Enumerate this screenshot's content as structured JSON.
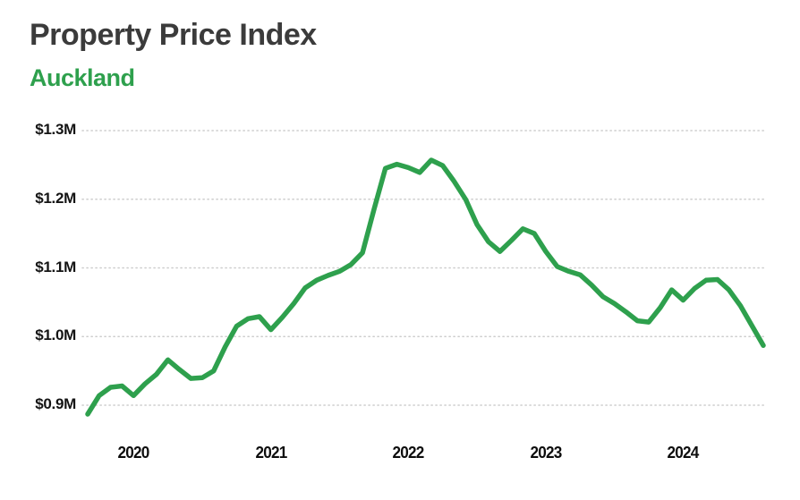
{
  "header": {
    "title": "Property Price Index",
    "subtitle": "Auckland"
  },
  "colors": {
    "line_green": "#2ea04d",
    "subtitle_green": "#2ea04d",
    "title_gray": "#3b3b3b",
    "gridline_gray": "#cdcdcd",
    "axis_text": "#141414"
  },
  "chart_data": {
    "type": "line",
    "title": "Property Price Index",
    "subtitle": "Auckland",
    "series_name": "Auckland property price index",
    "unit": "NZD millions",
    "grid": "horizontal-dotted",
    "legend": "none",
    "line_color": "#2ea04d",
    "ylim": [
      0.85,
      1.33
    ],
    "y_ticks": {
      "values": [
        1.3,
        1.2,
        1.1,
        1.0,
        0.9
      ],
      "labels": [
        "$1.3M",
        "$1.2M",
        "$1.1M",
        "$1.0M",
        "$0.9M"
      ]
    },
    "x_ticks": [
      "2020",
      "2021",
      "2022",
      "2023",
      "2024"
    ],
    "months": [
      "2019-09",
      "2019-10",
      "2019-11",
      "2019-12",
      "2020-01",
      "2020-02",
      "2020-03",
      "2020-04",
      "2020-05",
      "2020-06",
      "2020-07",
      "2020-08",
      "2020-09",
      "2020-10",
      "2020-11",
      "2020-12",
      "2021-01",
      "2021-02",
      "2021-03",
      "2021-04",
      "2021-05",
      "2021-06",
      "2021-07",
      "2021-08",
      "2021-09",
      "2021-10",
      "2021-11",
      "2021-12",
      "2022-01",
      "2022-02",
      "2022-03",
      "2022-04",
      "2022-05",
      "2022-06",
      "2022-07",
      "2022-08",
      "2022-09",
      "2022-10",
      "2022-11",
      "2022-12",
      "2023-01",
      "2023-02",
      "2023-03",
      "2023-04",
      "2023-05",
      "2023-06",
      "2023-07",
      "2023-08",
      "2023-09",
      "2023-10",
      "2023-11",
      "2023-12",
      "2024-01",
      "2024-02",
      "2024-03",
      "2024-04",
      "2024-05",
      "2024-06",
      "2024-07",
      "2024-08"
    ],
    "values": [
      0.887,
      0.914,
      0.926,
      0.928,
      0.914,
      0.931,
      0.945,
      0.966,
      0.952,
      0.939,
      0.94,
      0.95,
      0.985,
      1.015,
      1.026,
      1.029,
      1.01,
      1.028,
      1.048,
      1.071,
      1.082,
      1.089,
      1.095,
      1.105,
      1.122,
      1.185,
      1.245,
      1.251,
      1.246,
      1.239,
      1.257,
      1.249,
      1.226,
      1.2,
      1.163,
      1.138,
      1.124,
      1.14,
      1.157,
      1.15,
      1.124,
      1.102,
      1.095,
      1.09,
      1.075,
      1.058,
      1.048,
      1.036,
      1.023,
      1.021,
      1.042,
      1.068,
      1.053,
      1.07,
      1.082,
      1.083,
      1.068,
      1.045,
      1.016,
      0.987
    ]
  }
}
